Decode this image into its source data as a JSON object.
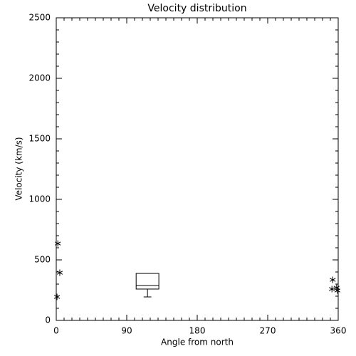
{
  "chart_data": {
    "type": "scatter",
    "title": "Velocity distribution",
    "x_label": "Angle from north",
    "y_label": "Velocity (km/s)",
    "x": [
      2,
      4.5,
      1,
      353,
      352,
      358,
      359
    ],
    "y": [
      635,
      394,
      194,
      335,
      259,
      270,
      247
    ],
    "box": {
      "x": [
        102,
        131
      ],
      "q1": 259,
      "median": 288,
      "q3": 388,
      "min": 194
    },
    "color": "#000000",
    "xlim": [
      0,
      360
    ],
    "xticks": [
      0,
      90,
      180,
      270,
      360
    ],
    "xminor": 9,
    "ylim": [
      0,
      2500
    ],
    "yticks": [
      0,
      500,
      1000,
      1500,
      2000,
      2500
    ],
    "yminor": 5
  }
}
